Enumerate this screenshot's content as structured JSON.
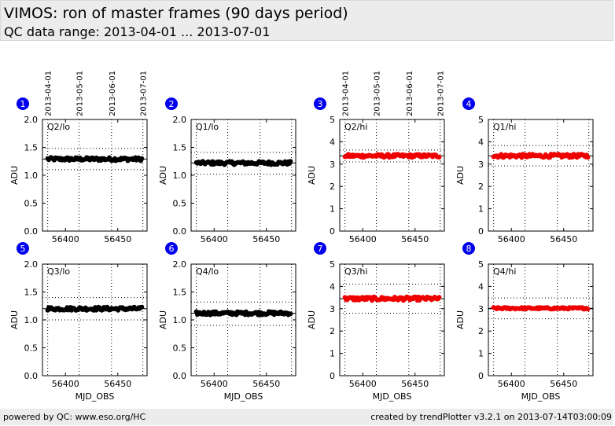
{
  "header": {
    "title": "VIMOS: ron of master frames (90 days period)",
    "subtitle": "QC data range: 2013-04-01 ... 2013-07-01"
  },
  "footer": {
    "left": "powered by QC: www.eso.org/HC",
    "right": "created by trendPlotter v3.2.1 on 2013-07-14T03:00:09"
  },
  "date_axis": {
    "labels": [
      "2013-04-01",
      "2013-05-01",
      "2013-06-01",
      "2013-07-01"
    ],
    "mjd": [
      56383,
      56413,
      56444,
      56474
    ]
  },
  "colors": {
    "lo": "#000000",
    "hi": "#ee0000",
    "badge": "#0000ee",
    "dotgrid": "#000000"
  },
  "chart_data": [
    {
      "type": "scatter",
      "badge": "1",
      "label": "Q2/lo",
      "ylabel": "ADU",
      "xlabel": "",
      "color": "#000000",
      "xlim": [
        56378,
        56478
      ],
      "ylim": [
        0,
        2
      ],
      "yticks": [
        0.0,
        0.5,
        1.0,
        1.5,
        2.0
      ],
      "xticks": [
        56400,
        56450
      ],
      "mean": 1.29,
      "band": [
        1.1,
        1.48
      ],
      "x_range": [
        56383,
        56473
      ],
      "y_center": 1.29,
      "y_spread": 0.03
    },
    {
      "type": "scatter",
      "badge": "2",
      "label": "Q1/lo",
      "ylabel": "ADU",
      "xlabel": "",
      "color": "#000000",
      "xlim": [
        56378,
        56478
      ],
      "ylim": [
        0,
        2
      ],
      "yticks": [
        0.0,
        0.5,
        1.0,
        1.5,
        2.0
      ],
      "xticks": [
        56400,
        56450
      ],
      "mean": 1.22,
      "band": [
        1.02,
        1.41
      ],
      "x_range": [
        56383,
        56473
      ],
      "y_center": 1.22,
      "y_spread": 0.03
    },
    {
      "type": "scatter",
      "badge": "3",
      "label": "Q2/hi",
      "ylabel": "ADU",
      "xlabel": "",
      "color": "#ee0000",
      "xlim": [
        56378,
        56478
      ],
      "ylim": [
        0,
        5
      ],
      "yticks": [
        0,
        1,
        2,
        3,
        4,
        5
      ],
      "xticks": [
        56400,
        56450
      ],
      "mean": 3.37,
      "band": [
        3.1,
        3.63
      ],
      "x_range": [
        56383,
        56473
      ],
      "y_center": 3.37,
      "y_spread": 0.07
    },
    {
      "type": "scatter",
      "badge": "4",
      "label": "Q1/hi",
      "ylabel": "ADU",
      "xlabel": "",
      "color": "#ee0000",
      "xlim": [
        56378,
        56478
      ],
      "ylim": [
        0,
        5
      ],
      "yticks": [
        0,
        1,
        2,
        3,
        4,
        5
      ],
      "xticks": [
        56400,
        56450
      ],
      "mean": 3.37,
      "band": [
        2.92,
        3.83
      ],
      "x_range": [
        56383,
        56473
      ],
      "y_center": 3.37,
      "y_spread": 0.08
    },
    {
      "type": "scatter",
      "badge": "5",
      "label": "Q3/lo",
      "ylabel": "ADU",
      "xlabel": "MJD_OBS",
      "color": "#000000",
      "xlim": [
        56378,
        56478
      ],
      "ylim": [
        0,
        2
      ],
      "yticks": [
        0.0,
        0.5,
        1.0,
        1.5,
        2.0
      ],
      "xticks": [
        56400,
        56450
      ],
      "mean": 1.2,
      "band": [
        1.0,
        1.4
      ],
      "x_range": [
        56383,
        56473
      ],
      "y_center": 1.2,
      "y_spread": 0.03
    },
    {
      "type": "scatter",
      "badge": "6",
      "label": "Q4/lo",
      "ylabel": "ADU",
      "xlabel": "MJD_OBS",
      "color": "#000000",
      "xlim": [
        56378,
        56478
      ],
      "ylim": [
        0,
        2
      ],
      "yticks": [
        0.0,
        0.5,
        1.0,
        1.5,
        2.0
      ],
      "xticks": [
        56400,
        56450
      ],
      "mean": 1.12,
      "band": [
        0.9,
        1.32
      ],
      "x_range": [
        56383,
        56473
      ],
      "y_center": 1.12,
      "y_spread": 0.03
    },
    {
      "type": "scatter",
      "badge": "7",
      "label": "Q3/hi",
      "ylabel": "ADU",
      "xlabel": "MJD_OBS",
      "color": "#ee0000",
      "xlim": [
        56378,
        56478
      ],
      "ylim": [
        0,
        5
      ],
      "yticks": [
        0,
        1,
        2,
        3,
        4,
        5
      ],
      "xticks": [
        56400,
        56450
      ],
      "mean": 3.45,
      "band": [
        2.8,
        4.1
      ],
      "x_range": [
        56383,
        56473
      ],
      "y_center": 3.45,
      "y_spread": 0.08
    },
    {
      "type": "scatter",
      "badge": "8",
      "label": "Q4/hi",
      "ylabel": "ADU",
      "xlabel": "MJD_OBS",
      "color": "#ee0000",
      "xlim": [
        56378,
        56478
      ],
      "ylim": [
        0,
        5
      ],
      "yticks": [
        0,
        1,
        2,
        3,
        4,
        5
      ],
      "xticks": [
        56400,
        56450
      ],
      "mean": 3.02,
      "band": [
        2.55,
        3.48
      ],
      "x_range": [
        56383,
        56473
      ],
      "y_center": 3.02,
      "y_spread": 0.04
    }
  ]
}
